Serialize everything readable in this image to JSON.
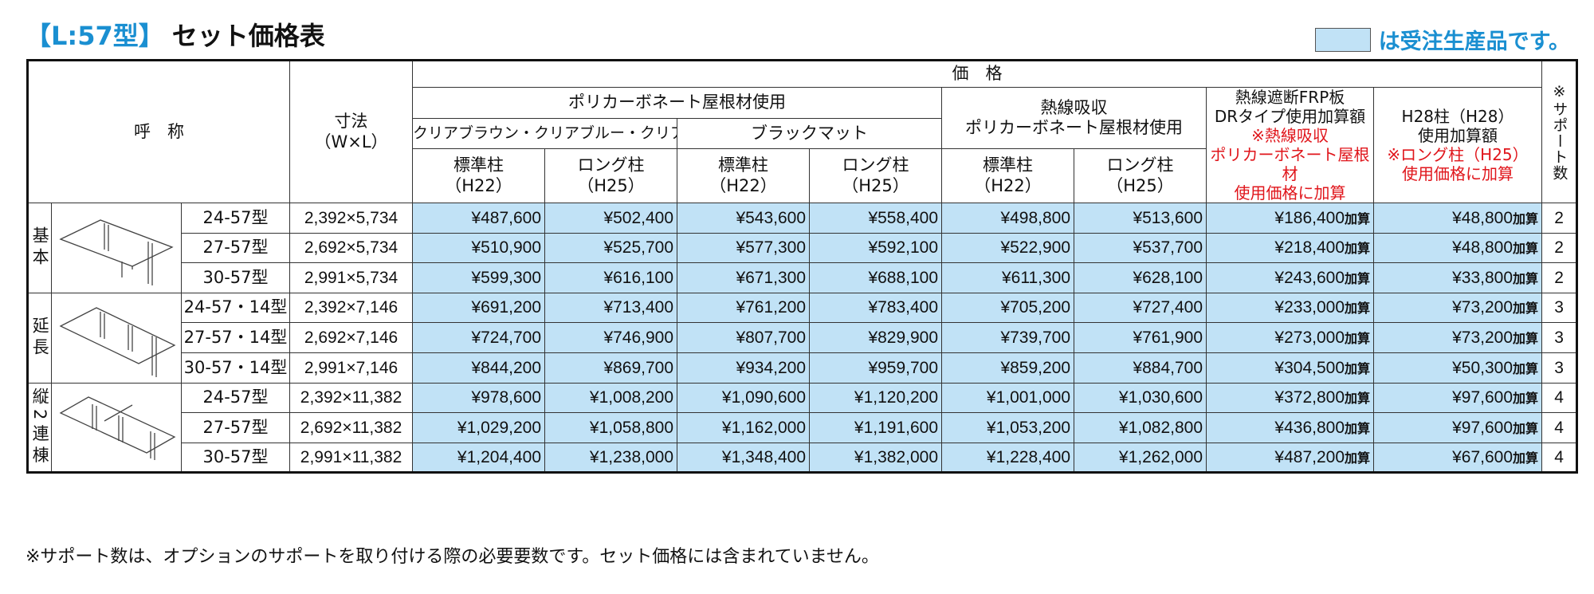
{
  "title": {
    "code": "【L:57型】",
    "main": "セット価格表"
  },
  "legend": {
    "text": "は受注生産品です。",
    "color": "#c1e2f6"
  },
  "header": {
    "name": "呼　称",
    "size": "寸法\n（W×L）",
    "price": "価　格",
    "poly": "ポリカーボネート屋根材使用",
    "clear_colors": "クリアブラウン・クリアブルー・クリアマット",
    "black_matte": "ブラックマット",
    "heat_line1": "熱線吸収",
    "heat_line2": "ポリカーボネート屋根材使用",
    "frp_line1": "熱線遮断FRP板",
    "frp_line2": "DRタイプ使用加算額",
    "frp_note1": "※熱線吸収",
    "frp_note2": "ポリカーボネート屋根材",
    "frp_note3": "使用価格に加算",
    "h28_line1": "H28柱（H28）",
    "h28_line2": "使用加算額",
    "h28_note1": "※ロング柱（H25）",
    "h28_note2": "使用価格に加算",
    "support": "※サポート数",
    "std_post": "標準柱",
    "std_code": "（H22）",
    "long_post": "ロング柱",
    "long_code": "（H25）"
  },
  "suffix": "加算",
  "groups": [
    {
      "label": "基本",
      "rows": [
        {
          "model": "24-57型",
          "size": "2,392×5,734",
          "prices": [
            "¥487,600",
            "¥502,400",
            "¥543,600",
            "¥558,400",
            "¥498,800",
            "¥513,600"
          ],
          "frp": "¥186,400",
          "h28": "¥48,800",
          "support": "2"
        },
        {
          "model": "27-57型",
          "size": "2,692×5,734",
          "prices": [
            "¥510,900",
            "¥525,700",
            "¥577,300",
            "¥592,100",
            "¥522,900",
            "¥537,700"
          ],
          "frp": "¥218,400",
          "h28": "¥48,800",
          "support": "2"
        },
        {
          "model": "30-57型",
          "size": "2,991×5,734",
          "prices": [
            "¥599,300",
            "¥616,100",
            "¥671,300",
            "¥688,100",
            "¥611,300",
            "¥628,100"
          ],
          "frp": "¥243,600",
          "h28": "¥33,800",
          "support": "2"
        }
      ]
    },
    {
      "label": "延長",
      "rows": [
        {
          "model": "24-57・14型",
          "size": "2,392×7,146",
          "prices": [
            "¥691,200",
            "¥713,400",
            "¥761,200",
            "¥783,400",
            "¥705,200",
            "¥727,400"
          ],
          "frp": "¥233,000",
          "h28": "¥73,200",
          "support": "3"
        },
        {
          "model": "27-57・14型",
          "size": "2,692×7,146",
          "prices": [
            "¥724,700",
            "¥746,900",
            "¥807,700",
            "¥829,900",
            "¥739,700",
            "¥761,900"
          ],
          "frp": "¥273,000",
          "h28": "¥73,200",
          "support": "3"
        },
        {
          "model": "30-57・14型",
          "size": "2,991×7,146",
          "prices": [
            "¥844,200",
            "¥869,700",
            "¥934,200",
            "¥959,700",
            "¥859,200",
            "¥884,700"
          ],
          "frp": "¥304,500",
          "h28": "¥50,300",
          "support": "3"
        }
      ]
    },
    {
      "label": "縦2連棟",
      "rows": [
        {
          "model": "24-57型",
          "size": "2,392×11,382",
          "prices": [
            "¥978,600",
            "¥1,008,200",
            "¥1,090,600",
            "¥1,120,200",
            "¥1,001,000",
            "¥1,030,600"
          ],
          "frp": "¥372,800",
          "h28": "¥97,600",
          "support": "4"
        },
        {
          "model": "27-57型",
          "size": "2,692×11,382",
          "prices": [
            "¥1,029,200",
            "¥1,058,800",
            "¥1,162,000",
            "¥1,191,600",
            "¥1,053,200",
            "¥1,082,800"
          ],
          "frp": "¥436,800",
          "h28": "¥97,600",
          "support": "4"
        },
        {
          "model": "30-57型",
          "size": "2,991×11,382",
          "prices": [
            "¥1,204,400",
            "¥1,238,000",
            "¥1,348,400",
            "¥1,382,000",
            "¥1,228,400",
            "¥1,262,000"
          ],
          "frp": "¥487,200",
          "h28": "¥67,600",
          "support": "4"
        }
      ]
    }
  ],
  "footnote": "※サポート数は、オプションのサポートを取り付ける際の必要要数です。セット価格には含まれていません。"
}
